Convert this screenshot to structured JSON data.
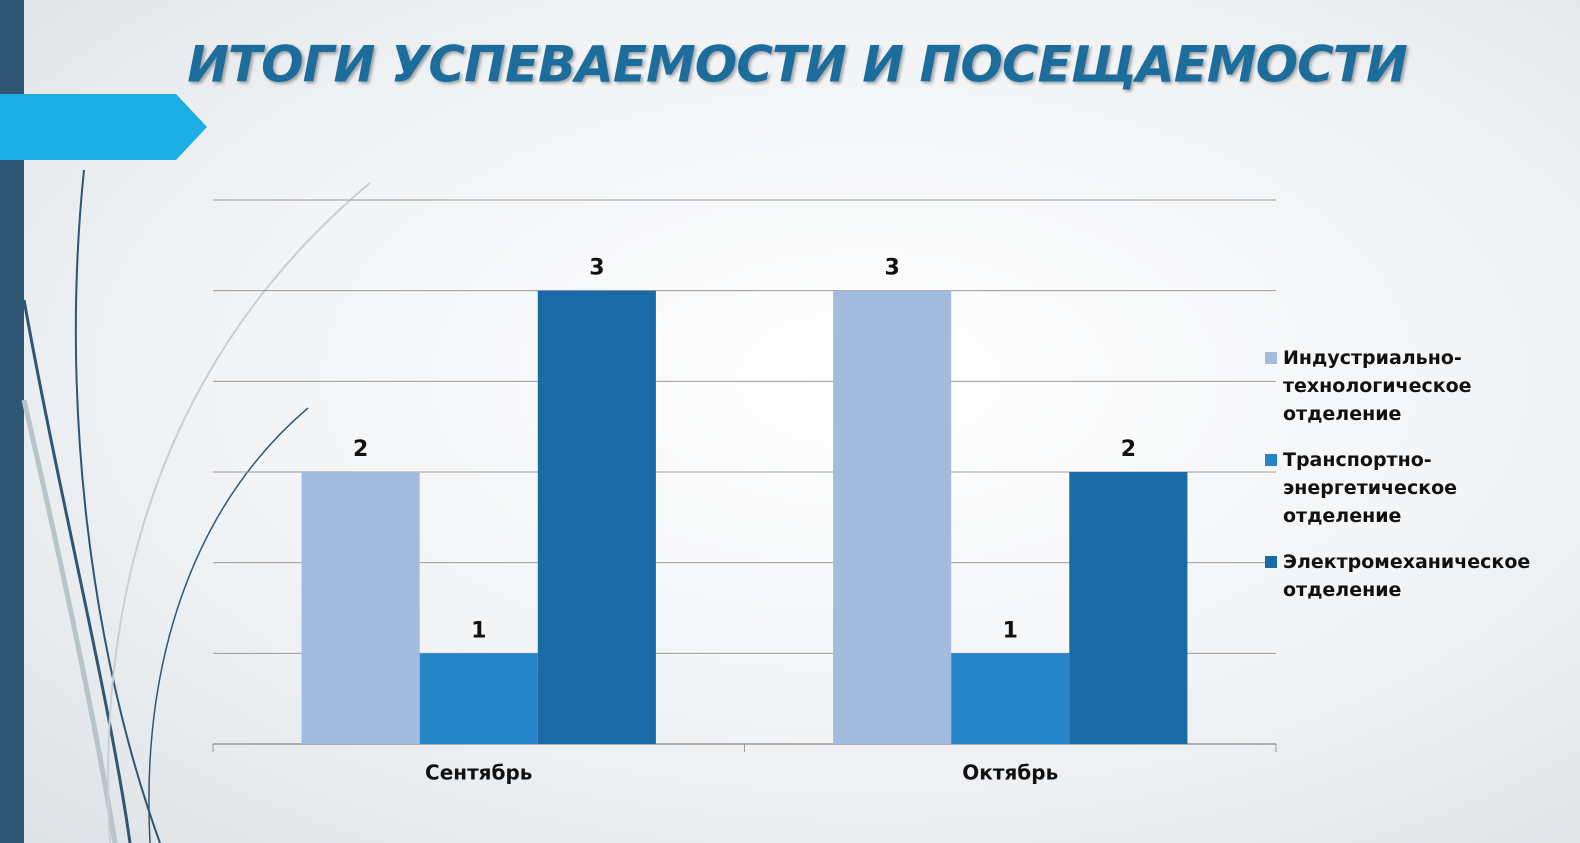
{
  "chart_data": {
    "type": "bar",
    "title": "ИТОГИ УСПЕВАЕМОСТИ И ПОСЕЩАЕМОСТИ",
    "categories": [
      "Сентябрь",
      "Октябрь"
    ],
    "series": [
      {
        "name": "Индустриально-технологическое отделение",
        "color": "#a3bbdc",
        "values": [
          2,
          3
        ]
      },
      {
        "name": "Транспортно-энергетическое отделение",
        "color": "#2684c8",
        "values": [
          1,
          1
        ]
      },
      {
        "name": "Электромеханическое отделение",
        "color": "#1a6aa5",
        "values": [
          3,
          2
        ]
      }
    ],
    "ylim": [
      0.5,
      3.5
    ],
    "yticks": [
      0.5,
      1,
      1.5,
      2,
      2.5,
      3,
      3.5
    ],
    "grid": true,
    "legend": "right"
  }
}
